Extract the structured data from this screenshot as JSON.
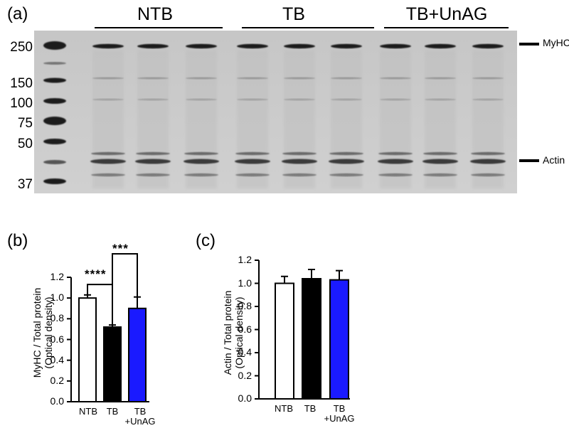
{
  "panel_a": {
    "label": "(a)",
    "groups": [
      "NTB",
      "TB",
      "TB+UnAG"
    ],
    "mw_markers": [
      "250",
      "150",
      "100",
      "75",
      "50",
      "37"
    ],
    "band_labels": [
      "MyHC",
      "Actin"
    ]
  },
  "panel_b": {
    "label": "(b)",
    "ylabel_line1": "MyHC / Total protein",
    "ylabel_line2": "(Optical density)",
    "ticks": [
      "0.0",
      "0.2",
      "0.4",
      "0.6",
      "0.8",
      "1.0",
      "1.2"
    ],
    "sig1": "****",
    "sig2": "***",
    "xlabels": [
      {
        "l1": "NTB",
        "l2": ""
      },
      {
        "l1": "TB",
        "l2": ""
      },
      {
        "l1": "TB",
        "l2": "+UnAG"
      }
    ]
  },
  "panel_c": {
    "label": "(c)",
    "ylabel_line1": "Actin / Total protein",
    "ylabel_line2": "(Optical density)",
    "ticks": [
      "0.0",
      "0.2",
      "0.4",
      "0.6",
      "0.8",
      "1.0",
      "1.2"
    ],
    "xlabels": [
      {
        "l1": "NTB",
        "l2": ""
      },
      {
        "l1": "TB",
        "l2": ""
      },
      {
        "l1": "TB",
        "l2": "+UnAG"
      }
    ]
  },
  "chart_data": [
    {
      "type": "bar",
      "categories": [
        "NTB",
        "TB",
        "TB+UnAG"
      ],
      "values": [
        1.0,
        0.72,
        0.9
      ],
      "errors": [
        0.03,
        0.02,
        0.11
      ],
      "colors": [
        "#ffffff",
        "#000000",
        "#1a1aff"
      ],
      "ylabel": "MyHC / Total protein (Optical density)",
      "ylim": [
        0,
        1.2
      ],
      "significance": [
        {
          "pair": [
            "NTB",
            "TB"
          ],
          "label": "****"
        },
        {
          "pair": [
            "TB",
            "TB+UnAG"
          ],
          "label": "***"
        }
      ]
    },
    {
      "type": "bar",
      "categories": [
        "NTB",
        "TB",
        "TB+UnAG"
      ],
      "values": [
        1.0,
        1.04,
        1.03
      ],
      "errors": [
        0.06,
        0.08,
        0.08
      ],
      "colors": [
        "#ffffff",
        "#000000",
        "#1a1aff"
      ],
      "ylabel": "Actin / Total protein (Optical density)",
      "ylim": [
        0,
        1.2
      ]
    }
  ]
}
